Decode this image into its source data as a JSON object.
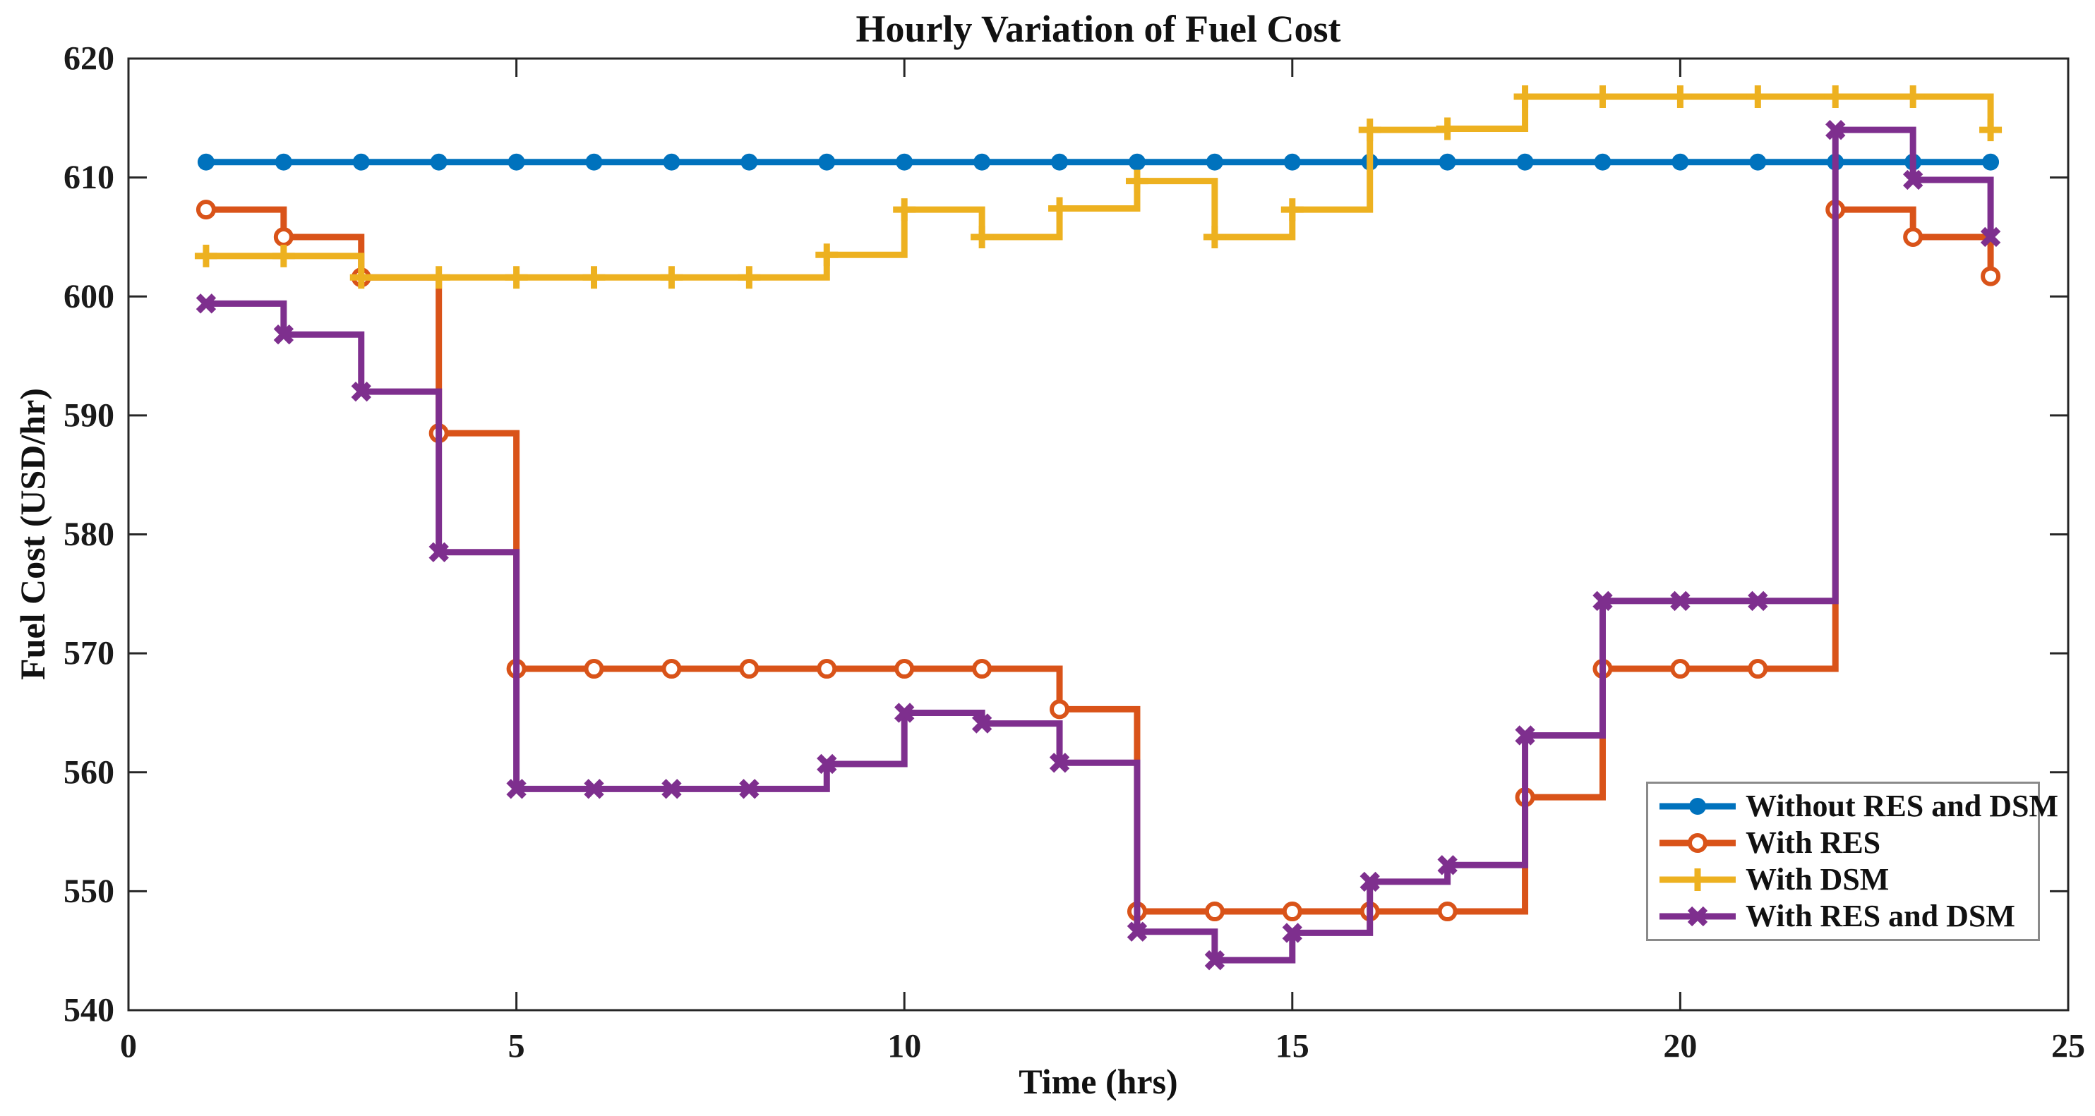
{
  "figure": {
    "title": "Hourly Variation of Fuel Cost",
    "xlabel": "Time (hrs)",
    "ylabel": "Fuel Cost (USD/hr)"
  },
  "colors": {
    "blue": "#0072BD",
    "orange": "#D95319",
    "yellow": "#EDB120",
    "purple": "#7E2F8E",
    "axis": "#262626",
    "legend_border": "#8a8a8a",
    "background": "#ffffff"
  },
  "chart_data": {
    "type": "line",
    "subtype": "stairs",
    "title": "Hourly Variation of Fuel Cost",
    "xlabel": "Time (hrs)",
    "ylabel": "Fuel Cost (USD/hr)",
    "xlim": [
      0,
      25
    ],
    "ylim": [
      540,
      620
    ],
    "x_ticks": [
      0,
      5,
      10,
      15,
      20,
      25
    ],
    "y_ticks": [
      540,
      550,
      560,
      570,
      580,
      590,
      600,
      610,
      620
    ],
    "grid": false,
    "legend_position": "south-east",
    "x": [
      1,
      2,
      3,
      4,
      5,
      6,
      7,
      8,
      9,
      10,
      11,
      12,
      13,
      14,
      15,
      16,
      17,
      18,
      19,
      20,
      21,
      22,
      23,
      24
    ],
    "series": [
      {
        "name": "Without RES and DSM",
        "color": "#0072BD",
        "marker": "circle-filled",
        "values": [
          611.3,
          611.3,
          611.3,
          611.3,
          611.3,
          611.3,
          611.3,
          611.3,
          611.3,
          611.3,
          611.3,
          611.3,
          611.3,
          611.3,
          611.3,
          611.3,
          611.3,
          611.3,
          611.3,
          611.3,
          611.3,
          611.3,
          611.3,
          611.3
        ]
      },
      {
        "name": "With RES",
        "color": "#D95319",
        "marker": "circle-open",
        "values": [
          607.3,
          605.0,
          601.6,
          588.5,
          568.7,
          568.7,
          568.7,
          568.7,
          568.7,
          568.7,
          568.7,
          565.3,
          548.3,
          548.3,
          548.3,
          548.3,
          548.3,
          557.9,
          568.7,
          568.7,
          568.7,
          607.3,
          605.0,
          601.7
        ]
      },
      {
        "name": "With DSM",
        "color": "#EDB120",
        "marker": "plus",
        "values": [
          603.4,
          603.4,
          601.6,
          601.6,
          601.6,
          601.6,
          601.6,
          601.6,
          603.5,
          607.3,
          605.0,
          607.4,
          609.7,
          605.0,
          607.3,
          614.0,
          614.1,
          616.8,
          616.8,
          616.8,
          616.8,
          616.8,
          616.8,
          614.0
        ]
      },
      {
        "name": "With RES and DSM",
        "color": "#7E2F8E",
        "marker": "x",
        "values": [
          599.4,
          596.8,
          592.0,
          578.5,
          558.6,
          558.6,
          558.6,
          558.6,
          560.7,
          565.0,
          564.1,
          560.8,
          546.6,
          544.2,
          546.5,
          550.8,
          552.2,
          563.1,
          574.4,
          574.4,
          574.4,
          614.0,
          609.8,
          605.0
        ]
      }
    ]
  }
}
